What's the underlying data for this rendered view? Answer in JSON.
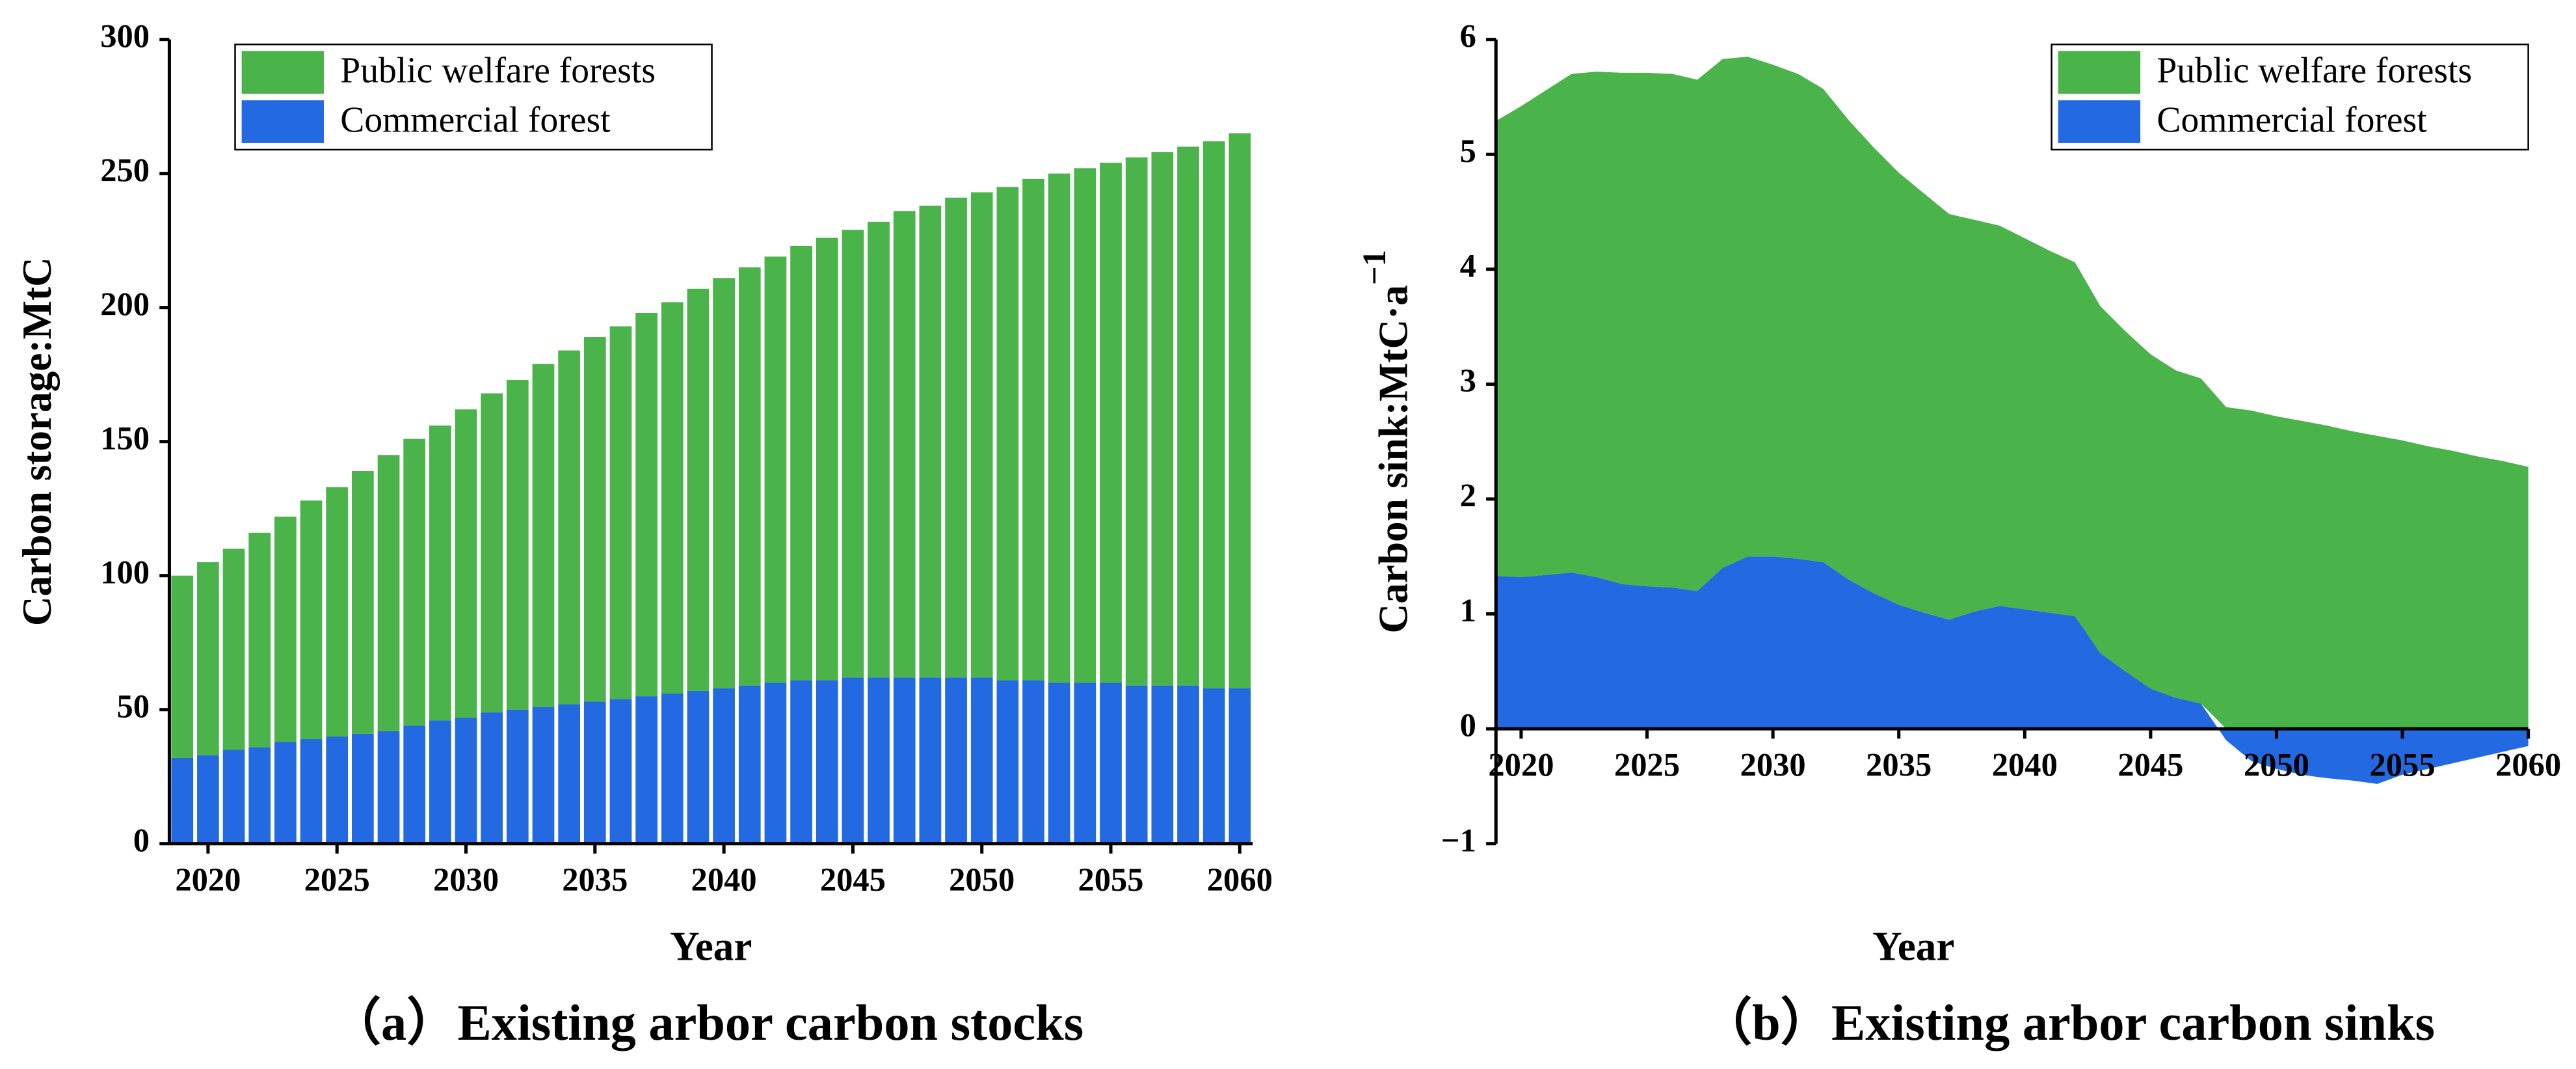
{
  "chart_data": [
    {
      "type": "bar",
      "y_label": "Carbon storage:MtC",
      "x_label": "Year",
      "caption": "（a）Existing arbor carbon stocks",
      "x": [
        2019,
        2020,
        2021,
        2022,
        2023,
        2024,
        2025,
        2026,
        2027,
        2028,
        2029,
        2030,
        2031,
        2032,
        2033,
        2034,
        2035,
        2036,
        2037,
        2038,
        2039,
        2040,
        2041,
        2042,
        2043,
        2044,
        2045,
        2046,
        2047,
        2048,
        2049,
        2050,
        2051,
        2052,
        2053,
        2054,
        2055,
        2056,
        2057,
        2058,
        2059,
        2060
      ],
      "series": [
        {
          "name": "Public welfare forests",
          "color": "#4ab34a",
          "values": [
            68,
            72,
            75,
            80,
            84,
            89,
            93,
            98,
            103,
            107,
            110,
            115,
            119,
            123,
            128,
            132,
            136,
            139,
            143,
            146,
            150,
            153,
            156,
            159,
            162,
            165,
            167,
            170,
            174,
            176,
            179,
            181,
            184,
            187,
            190,
            192,
            194,
            197,
            199,
            201,
            204,
            207
          ]
        },
        {
          "name": "Commercial forest",
          "color": "#236ae2",
          "values": [
            32,
            33,
            35,
            36,
            38,
            39,
            40,
            41,
            42,
            44,
            46,
            47,
            49,
            50,
            51,
            52,
            53,
            54,
            55,
            56,
            57,
            58,
            59,
            60,
            61,
            61,
            62,
            62,
            62,
            62,
            62,
            62,
            61,
            61,
            60,
            60,
            60,
            59,
            59,
            59,
            58,
            58
          ]
        }
      ],
      "xlim": [
        2018.5,
        2060.5
      ],
      "xticks": [
        2020,
        2025,
        2030,
        2035,
        2040,
        2045,
        2050,
        2055,
        2060
      ],
      "ylim": [
        0,
        300
      ],
      "yticks": [
        0,
        50,
        100,
        150,
        200,
        250,
        300
      ],
      "legend": "upper left"
    },
    {
      "type": "area",
      "y_label": "Carbon sink:MtC·a",
      "y_label_sup": "−1",
      "x_label": "Year",
      "caption": "（b）Existing arbor carbon sinks",
      "x": [
        2019,
        2020,
        2021,
        2022,
        2023,
        2024,
        2025,
        2026,
        2027,
        2028,
        2029,
        2030,
        2031,
        2032,
        2033,
        2034,
        2035,
        2036,
        2037,
        2038,
        2039,
        2040,
        2041,
        2042,
        2043,
        2044,
        2045,
        2046,
        2047,
        2048,
        2049,
        2050,
        2051,
        2052,
        2053,
        2054,
        2055,
        2056,
        2057,
        2058,
        2059,
        2060
      ],
      "series": [
        {
          "name": "Public welfare forests",
          "color": "#4ab34a",
          "values": [
            3.96,
            4.1,
            4.22,
            4.34,
            4.4,
            4.45,
            4.47,
            4.47,
            4.45,
            4.43,
            4.35,
            4.28,
            4.22,
            4.12,
            4.0,
            3.88,
            3.76,
            3.65,
            3.53,
            3.41,
            3.31,
            3.23,
            3.15,
            3.08,
            3.02,
            2.96,
            2.91,
            2.85,
            2.83,
            2.8,
            2.77,
            2.72,
            2.68,
            2.64,
            2.59,
            2.55,
            2.51,
            2.46,
            2.42,
            2.37,
            2.33,
            2.28
          ]
        },
        {
          "name": "Commercial forest",
          "color": "#236ae2",
          "values": [
            1.33,
            1.32,
            1.34,
            1.36,
            1.32,
            1.26,
            1.24,
            1.23,
            1.2,
            1.4,
            1.5,
            1.5,
            1.48,
            1.45,
            1.3,
            1.18,
            1.08,
            1.01,
            0.95,
            1.02,
            1.07,
            1.04,
            1.01,
            0.98,
            0.66,
            0.5,
            0.35,
            0.27,
            0.22,
            -0.1,
            -0.28,
            -0.35,
            -0.4,
            -0.43,
            -0.45,
            -0.48,
            -0.4,
            -0.35,
            -0.3,
            -0.25,
            -0.2,
            -0.15
          ]
        }
      ],
      "xlim": [
        2019,
        2060
      ],
      "xticks": [
        2020,
        2025,
        2030,
        2035,
        2040,
        2045,
        2050,
        2055,
        2060
      ],
      "ylim": [
        -1,
        6
      ],
      "yticks": [
        {
          "value": -1,
          "label": "−1"
        },
        0,
        1,
        2,
        3,
        4,
        5,
        6
      ],
      "legend": "upper right"
    }
  ]
}
